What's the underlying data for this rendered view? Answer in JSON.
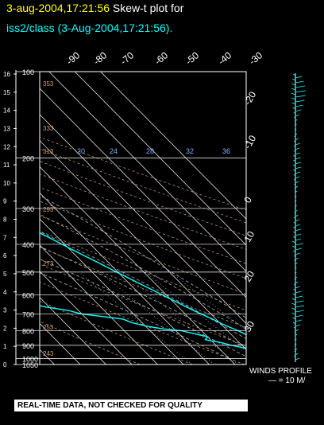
{
  "title": {
    "line1_date": "3-aug-2004,17:21:56",
    "line1_text": "Skew-t plot for",
    "line2": "iss2/class (3-Aug-2004,17:21:56)."
  },
  "banner": "REAL-TIME DATA, NOT CHECKED FOR QUALITY",
  "winds": {
    "label": "WINDS PROFILE",
    "scale": "— = 10 M/"
  },
  "colors": {
    "temperature": "#00ffff",
    "dewpoint": "#00ffff",
    "isotherm": "#ffffff",
    "dry_adiabat": "#d2a070",
    "moist_adiabat": "#c8c8c8",
    "mixing_ratio": "#9cc8ff",
    "title_date": "#ffff00",
    "title_sub": "#00ffff"
  },
  "chart_data": {
    "type": "line",
    "pressure_ticks": [
      "100",
      "200",
      "300",
      "400",
      "500",
      "600",
      "700",
      "800",
      "900",
      "1000",
      "1050"
    ],
    "pressure_levels": [
      100,
      200,
      300,
      400,
      500,
      600,
      700,
      800,
      900,
      1000,
      1050
    ],
    "height_ticks": [
      "16",
      "15",
      "14",
      "13",
      "12",
      "11",
      "10",
      "9",
      "8",
      "7",
      "6",
      "5",
      "4",
      "3",
      "2",
      "1",
      "0"
    ],
    "top_temp_labels": [
      "-90",
      "-80",
      "-70",
      "-60",
      "-50",
      "-40",
      "-30"
    ],
    "right_temp_labels": [
      "-20",
      "-10",
      "0",
      "10",
      "20",
      "30"
    ],
    "mixing_ratio_labels": [
      "20",
      "24",
      "28",
      "32",
      "36"
    ],
    "dry_adiabat_labels": [
      "353",
      "333",
      "313",
      "293",
      "273",
      "253",
      "243"
    ],
    "series": [
      {
        "points": [
          [
            1003,
            29
          ],
          [
            990,
            27
          ],
          [
            970,
            25.5
          ],
          [
            950,
            23.8
          ],
          [
            920,
            22
          ],
          [
            900,
            20.6
          ],
          [
            880,
            19.5
          ],
          [
            850,
            17.5
          ],
          [
            820,
            15.4
          ],
          [
            800,
            14
          ],
          [
            780,
            12.4
          ],
          [
            760,
            10.6
          ],
          [
            740,
            9.4
          ],
          [
            720,
            8
          ],
          [
            700,
            6.2
          ],
          [
            680,
            4.6
          ],
          [
            660,
            3
          ],
          [
            640,
            1.6
          ],
          [
            620,
            0
          ],
          [
            600,
            -1.6
          ],
          [
            580,
            -3.2
          ],
          [
            560,
            -5
          ],
          [
            540,
            -6.8
          ],
          [
            520,
            -8.6
          ],
          [
            500,
            -10.5
          ],
          [
            480,
            -12.4
          ],
          [
            460,
            -14.4
          ],
          [
            440,
            -16.6
          ],
          [
            420,
            -18.8
          ],
          [
            400,
            -21
          ],
          [
            380,
            -23.4
          ],
          [
            360,
            -26
          ],
          [
            340,
            -28.6
          ],
          [
            320,
            -31.4
          ],
          [
            300,
            -34.4
          ],
          [
            280,
            -37.6
          ],
          [
            260,
            -41
          ],
          [
            240,
            -44.6
          ],
          [
            220,
            -48.5
          ],
          [
            200,
            -52.6
          ],
          [
            180,
            -56.8
          ],
          [
            160,
            -61.5
          ],
          [
            140,
            -66.8
          ],
          [
            120,
            -70.6
          ],
          [
            110,
            -71.4
          ],
          [
            100,
            -70.8
          ]
        ]
      },
      {
        "points": [
          [
            1003,
            20
          ],
          [
            990,
            19
          ],
          [
            970,
            17.5
          ],
          [
            950,
            14.5
          ],
          [
            940,
            13
          ],
          [
            920,
            10
          ],
          [
            900,
            6
          ],
          [
            880,
            3
          ],
          [
            860,
            -2
          ],
          [
            840,
            0
          ],
          [
            820,
            -4
          ],
          [
            800,
            -8
          ],
          [
            790,
            -14
          ],
          [
            770,
            -20
          ],
          [
            750,
            -24
          ],
          [
            730,
            -26
          ],
          [
            720,
            -30
          ],
          [
            700,
            -40
          ],
          [
            680,
            -44
          ],
          [
            660,
            -52
          ],
          [
            640,
            -56
          ],
          [
            620,
            -60
          ],
          [
            600,
            -62
          ],
          [
            580,
            -60
          ],
          [
            560,
            -54
          ],
          [
            540,
            -56
          ],
          [
            520,
            -62
          ],
          [
            500,
            -70
          ],
          [
            480,
            -78
          ],
          [
            460,
            -70
          ],
          [
            440,
            -66
          ],
          [
            420,
            -70
          ],
          [
            400,
            -76
          ],
          [
            380,
            -80
          ],
          [
            360,
            -82
          ],
          [
            340,
            -84
          ],
          [
            320,
            -86
          ],
          [
            300,
            -88
          ],
          [
            280,
            -90
          ],
          [
            250,
            -91
          ],
          [
            200,
            -93
          ],
          [
            150,
            -94
          ],
          [
            120,
            -93
          ],
          [
            100,
            -94
          ]
        ]
      }
    ],
    "ylim": [
      100,
      1050
    ],
    "xlim": [
      -30,
      50
    ]
  }
}
